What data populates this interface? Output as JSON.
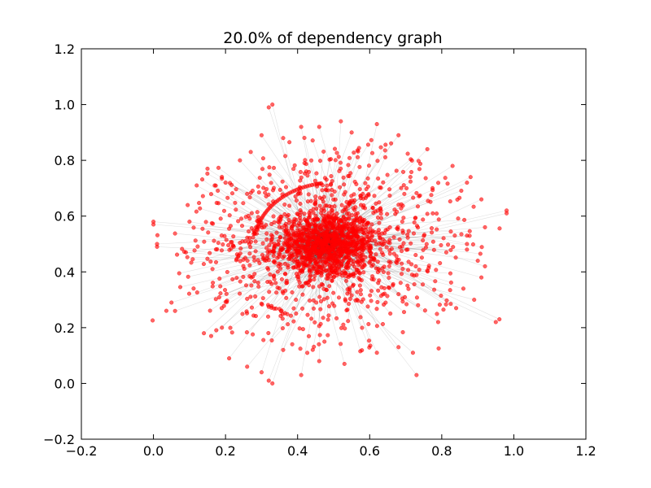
{
  "chart_data": {
    "type": "scatter",
    "title": "20.0% of dependency graph",
    "xlabel": "",
    "ylabel": "",
    "xlim": [
      -0.2,
      1.2
    ],
    "ylim": [
      -0.2,
      1.2
    ],
    "x_ticks": [
      "−0.2",
      "0.0",
      "0.2",
      "0.4",
      "0.6",
      "0.8",
      "1.0",
      "1.2"
    ],
    "y_ticks": [
      "−0.2",
      "0.0",
      "0.2",
      "0.4",
      "0.6",
      "0.8",
      "1.0",
      "1.2"
    ],
    "grid": false,
    "node_color": "#ff0000",
    "edge_color": "#000000",
    "points": [
      [
        0.33,
        1.0
      ],
      [
        0.32,
        0.99
      ],
      [
        0.0,
        0.57
      ],
      [
        0.0,
        0.58
      ],
      [
        0.01,
        0.5
      ],
      [
        0.01,
        0.49
      ],
      [
        0.05,
        0.29
      ],
      [
        0.06,
        0.26
      ],
      [
        0.98,
        0.62
      ],
      [
        0.98,
        0.61
      ],
      [
        0.96,
        0.23
      ],
      [
        0.95,
        0.22
      ],
      [
        0.32,
        0.01
      ],
      [
        0.33,
        0.0
      ],
      [
        0.73,
        0.03
      ],
      [
        0.92,
        0.42
      ],
      [
        0.91,
        0.38
      ],
      [
        0.89,
        0.3
      ],
      [
        0.87,
        0.48
      ],
      [
        0.87,
        0.5
      ],
      [
        0.87,
        0.53
      ],
      [
        0.92,
        0.56
      ],
      [
        0.88,
        0.74
      ],
      [
        0.87,
        0.72
      ],
      [
        0.2,
        0.72
      ],
      [
        0.17,
        0.71
      ],
      [
        0.15,
        0.77
      ],
      [
        0.12,
        0.71
      ],
      [
        0.1,
        0.58
      ],
      [
        0.09,
        0.47
      ],
      [
        0.14,
        0.18
      ],
      [
        0.16,
        0.17
      ],
      [
        0.19,
        0.2
      ],
      [
        0.21,
        0.09
      ],
      [
        0.26,
        0.06
      ],
      [
        0.3,
        0.04
      ],
      [
        0.36,
        0.12
      ],
      [
        0.41,
        0.03
      ],
      [
        0.46,
        0.08
      ],
      [
        0.53,
        0.07
      ],
      [
        0.62,
        0.11
      ],
      [
        0.68,
        0.13
      ],
      [
        0.72,
        0.11
      ],
      [
        0.79,
        0.22
      ],
      [
        0.84,
        0.27
      ],
      [
        0.86,
        0.34
      ],
      [
        0.9,
        0.44
      ],
      [
        0.91,
        0.66
      ],
      [
        0.83,
        0.78
      ],
      [
        0.76,
        0.84
      ],
      [
        0.68,
        0.89
      ],
      [
        0.62,
        0.93
      ],
      [
        0.55,
        0.9
      ],
      [
        0.52,
        0.94
      ],
      [
        0.46,
        0.92
      ],
      [
        0.41,
        0.92
      ],
      [
        0.36,
        0.88
      ],
      [
        0.3,
        0.89
      ],
      [
        0.27,
        0.83
      ],
      [
        0.24,
        0.8
      ]
    ]
  }
}
